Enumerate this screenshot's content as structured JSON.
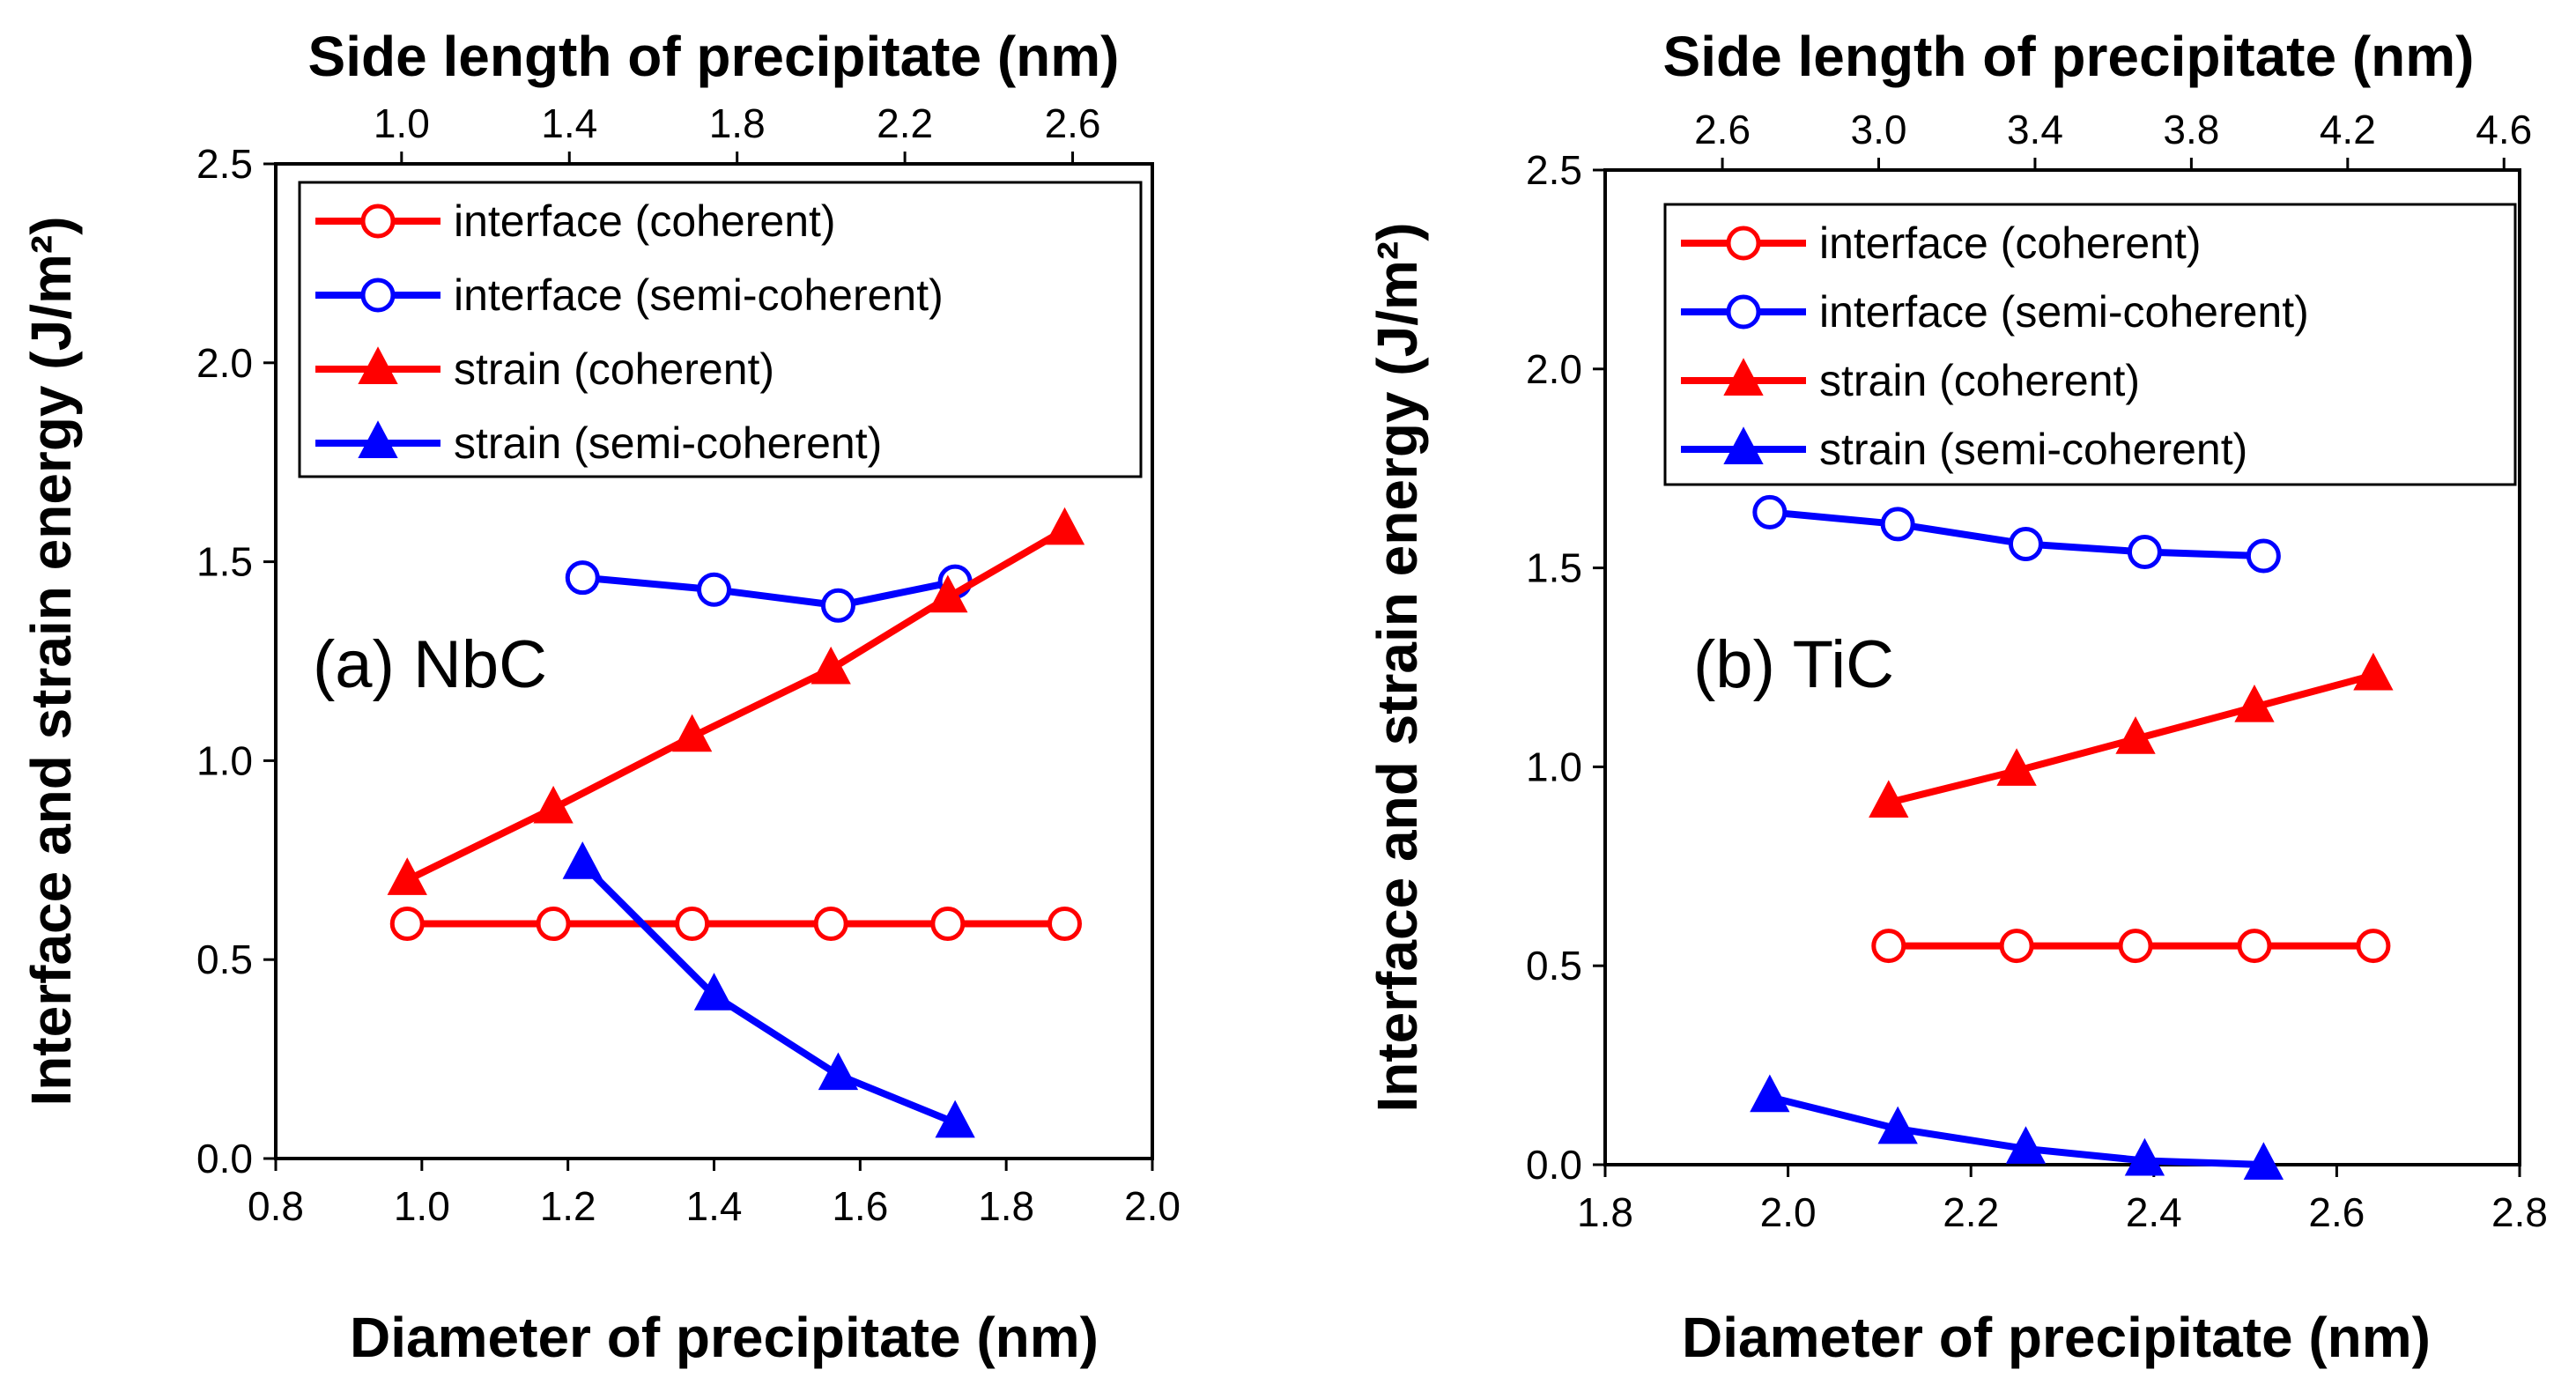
{
  "chart_data": [
    {
      "type": "line",
      "panel_label": "(a)  NbC",
      "xlabel": "Diameter of precipitate (nm)",
      "x2label": "Side length of  precipitate (nm)",
      "ylabel": "Interface and strain energy (J/m²)",
      "xlim": [
        0.8,
        2.0
      ],
      "x_ticks": [
        "0.8",
        "1.0",
        "1.2",
        "1.4",
        "1.6",
        "1.8",
        "2.0"
      ],
      "x2lim": [
        0.7,
        2.79
      ],
      "x2_ticks": [
        "1.0",
        "1.4",
        "1.8",
        "2.2",
        "2.6"
      ],
      "ylim": [
        0.0,
        2.5
      ],
      "y_ticks": [
        "0.0",
        "0.5",
        "1.0",
        "1.5",
        "2.0",
        "2.5"
      ],
      "legend": "top",
      "series": [
        {
          "name": "interface (coherent)",
          "color": "#ff0000",
          "marker": "circle",
          "x": [
            0.98,
            1.18,
            1.37,
            1.56,
            1.72,
            1.88
          ],
          "y": [
            0.59,
            0.59,
            0.59,
            0.59,
            0.59,
            0.59
          ]
        },
        {
          "name": "interface (semi-coherent)",
          "color": "#0000ff",
          "marker": "circle",
          "x": [
            1.22,
            1.4,
            1.57,
            1.73
          ],
          "y": [
            1.46,
            1.43,
            1.39,
            1.45
          ]
        },
        {
          "name": "strain (coherent)",
          "color": "#ff0000",
          "marker": "triangle",
          "x": [
            0.98,
            1.18,
            1.37,
            1.56,
            1.72,
            1.88
          ],
          "y": [
            0.7,
            0.88,
            1.06,
            1.23,
            1.41,
            1.58
          ]
        },
        {
          "name": "strain (semi-coherent)",
          "color": "#0000ff",
          "marker": "triangle",
          "x": [
            1.22,
            1.4,
            1.57,
            1.73
          ],
          "y": [
            0.74,
            0.41,
            0.21,
            0.09
          ]
        }
      ]
    },
    {
      "type": "line",
      "panel_label": "(b)  TiC",
      "xlabel": "Diameter of precipitate (nm)",
      "x2label": "Side length of  precipitate (nm)",
      "ylabel": "Interface and strain energy (J/m²)",
      "xlim": [
        1.8,
        2.8
      ],
      "x_ticks": [
        "1.8",
        "2.0",
        "2.2",
        "2.4",
        "2.6",
        "2.8"
      ],
      "x2lim": [
        2.3,
        4.64
      ],
      "x2_ticks": [
        "2.6",
        "3.0",
        "3.4",
        "3.8",
        "4.2",
        "4.6"
      ],
      "ylim": [
        0.0,
        2.5
      ],
      "y_ticks": [
        "0.0",
        "0.5",
        "1.0",
        "1.5",
        "2.0",
        "2.5"
      ],
      "legend": "top",
      "series": [
        {
          "name": "interface (coherent)",
          "color": "#ff0000",
          "marker": "circle",
          "x": [
            2.11,
            2.25,
            2.38,
            2.51,
            2.64
          ],
          "y": [
            0.55,
            0.55,
            0.55,
            0.55,
            0.55
          ]
        },
        {
          "name": "interface (semi-coherent)",
          "color": "#0000ff",
          "marker": "circle",
          "x": [
            1.98,
            2.12,
            2.26,
            2.39,
            2.52
          ],
          "y": [
            1.64,
            1.61,
            1.56,
            1.54,
            1.53
          ]
        },
        {
          "name": "strain (coherent)",
          "color": "#ff0000",
          "marker": "triangle",
          "x": [
            2.11,
            2.25,
            2.38,
            2.51,
            2.64
          ],
          "y": [
            0.91,
            0.99,
            1.07,
            1.15,
            1.23
          ]
        },
        {
          "name": "strain (semi-coherent)",
          "color": "#0000ff",
          "marker": "triangle",
          "x": [
            1.98,
            2.12,
            2.26,
            2.39,
            2.52
          ],
          "y": [
            0.17,
            0.09,
            0.04,
            0.01,
            0.0
          ]
        }
      ]
    }
  ]
}
